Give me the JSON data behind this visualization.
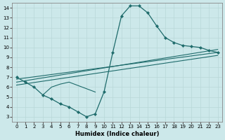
{
  "xlabel": "Humidex (Indice chaleur)",
  "background_color": "#cce8ea",
  "line_color": "#1e6b6b",
  "grid_color": "#b8d8d8",
  "xlim": [
    -0.5,
    23.5
  ],
  "ylim": [
    2.5,
    14.5
  ],
  "xticks": [
    0,
    1,
    2,
    3,
    4,
    5,
    6,
    7,
    8,
    9,
    10,
    11,
    12,
    13,
    14,
    15,
    16,
    17,
    18,
    19,
    20,
    21,
    22,
    23
  ],
  "yticks": [
    3,
    4,
    5,
    6,
    7,
    8,
    9,
    10,
    11,
    12,
    13,
    14
  ],
  "curve_x": [
    0,
    1,
    2,
    3,
    4,
    5,
    6,
    7,
    8,
    9,
    10,
    11,
    12,
    13,
    14,
    15,
    16,
    17,
    18,
    19,
    20,
    21,
    22,
    23
  ],
  "curve_y": [
    7.0,
    6.5,
    6.0,
    5.2,
    4.8,
    4.3,
    4.0,
    3.5,
    3.0,
    3.3,
    5.5,
    9.5,
    13.2,
    14.2,
    14.2,
    13.5,
    12.2,
    11.0,
    10.5,
    10.2,
    10.1,
    10.0,
    9.7,
    9.5
  ],
  "loop_x": [
    3,
    4,
    5,
    6,
    9
  ],
  "loop_y": [
    5.2,
    6.0,
    6.3,
    6.5,
    5.5
  ],
  "line1_x": [
    0,
    23
  ],
  "line1_y": [
    6.8,
    9.5
  ],
  "line2_x": [
    0,
    23
  ],
  "line2_y": [
    6.5,
    9.8
  ],
  "line3_x": [
    0,
    23
  ],
  "line3_y": [
    6.2,
    9.2
  ]
}
